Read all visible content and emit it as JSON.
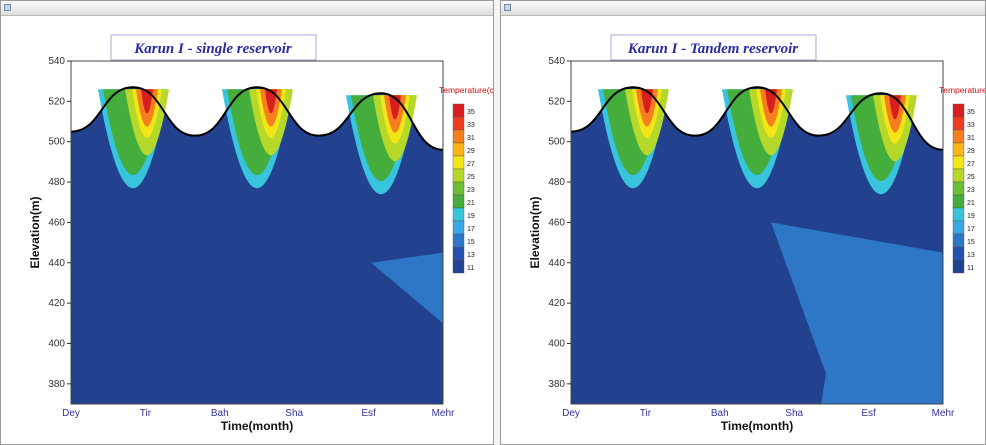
{
  "chart_data": [
    {
      "type": "heatmap",
      "title": "Karun I - single reservoir",
      "xlabel": "Time(month)",
      "ylabel": "Elevation(m)",
      "x_tick_labels": [
        "Dey",
        "Tir",
        "Bah",
        "Sha",
        "Esf",
        "Mehr"
      ],
      "y_ticks": [
        380,
        400,
        420,
        440,
        460,
        480,
        500,
        520,
        540
      ],
      "ylim": [
        370,
        540
      ],
      "legend_title": "Temperature(c)",
      "legend_levels": [
        "35",
        "33",
        "31",
        "29",
        "27",
        "25",
        "23",
        "21",
        "19",
        "17",
        "15",
        "13",
        "11"
      ],
      "legend_colors": [
        "#d81e1e",
        "#ef3c1e",
        "#f57e1e",
        "#f9b616",
        "#f4e616",
        "#b6d82a",
        "#6cbe34",
        "#44ad3c",
        "#38c4dc",
        "#3ba7e4",
        "#2e77c6",
        "#2451ae",
        "#22418f"
      ],
      "surface_elevation": [
        505,
        527,
        503,
        527,
        503,
        524,
        496
      ],
      "grid": false,
      "legend_position": "right"
    },
    {
      "type": "heatmap",
      "title": "Karun I - Tandem reservoir",
      "xlabel": "Time(month)",
      "ylabel": "Elevation(m)",
      "x_tick_labels": [
        "Dey",
        "Tir",
        "Bah",
        "Sha",
        "Esf",
        "Mehr"
      ],
      "y_ticks": [
        380,
        400,
        420,
        440,
        460,
        480,
        500,
        520,
        540
      ],
      "ylim": [
        370,
        540
      ],
      "legend_title": "Temperature(c)",
      "legend_levels": [
        "35",
        "33",
        "31",
        "29",
        "27",
        "25",
        "23",
        "21",
        "19",
        "17",
        "15",
        "13",
        "11"
      ],
      "legend_colors": [
        "#d81e1e",
        "#ef3c1e",
        "#f57e1e",
        "#f9b616",
        "#f4e616",
        "#b6d82a",
        "#6cbe34",
        "#44ad3c",
        "#38c4dc",
        "#3ba7e4",
        "#2e77c6",
        "#2451ae",
        "#22418f"
      ],
      "surface_elevation": [
        505,
        527,
        503,
        527,
        503,
        524,
        496
      ],
      "grid": false,
      "legend_position": "right"
    }
  ],
  "palette": {
    "deep": "#22418f",
    "mid_blue": "#2e77c6",
    "cyan": "#38c4dc",
    "green": "#44ad3c",
    "light_green": "#b6d82a",
    "yellow": "#f4e616",
    "orange": "#f57e1e",
    "red": "#d81e1e"
  }
}
